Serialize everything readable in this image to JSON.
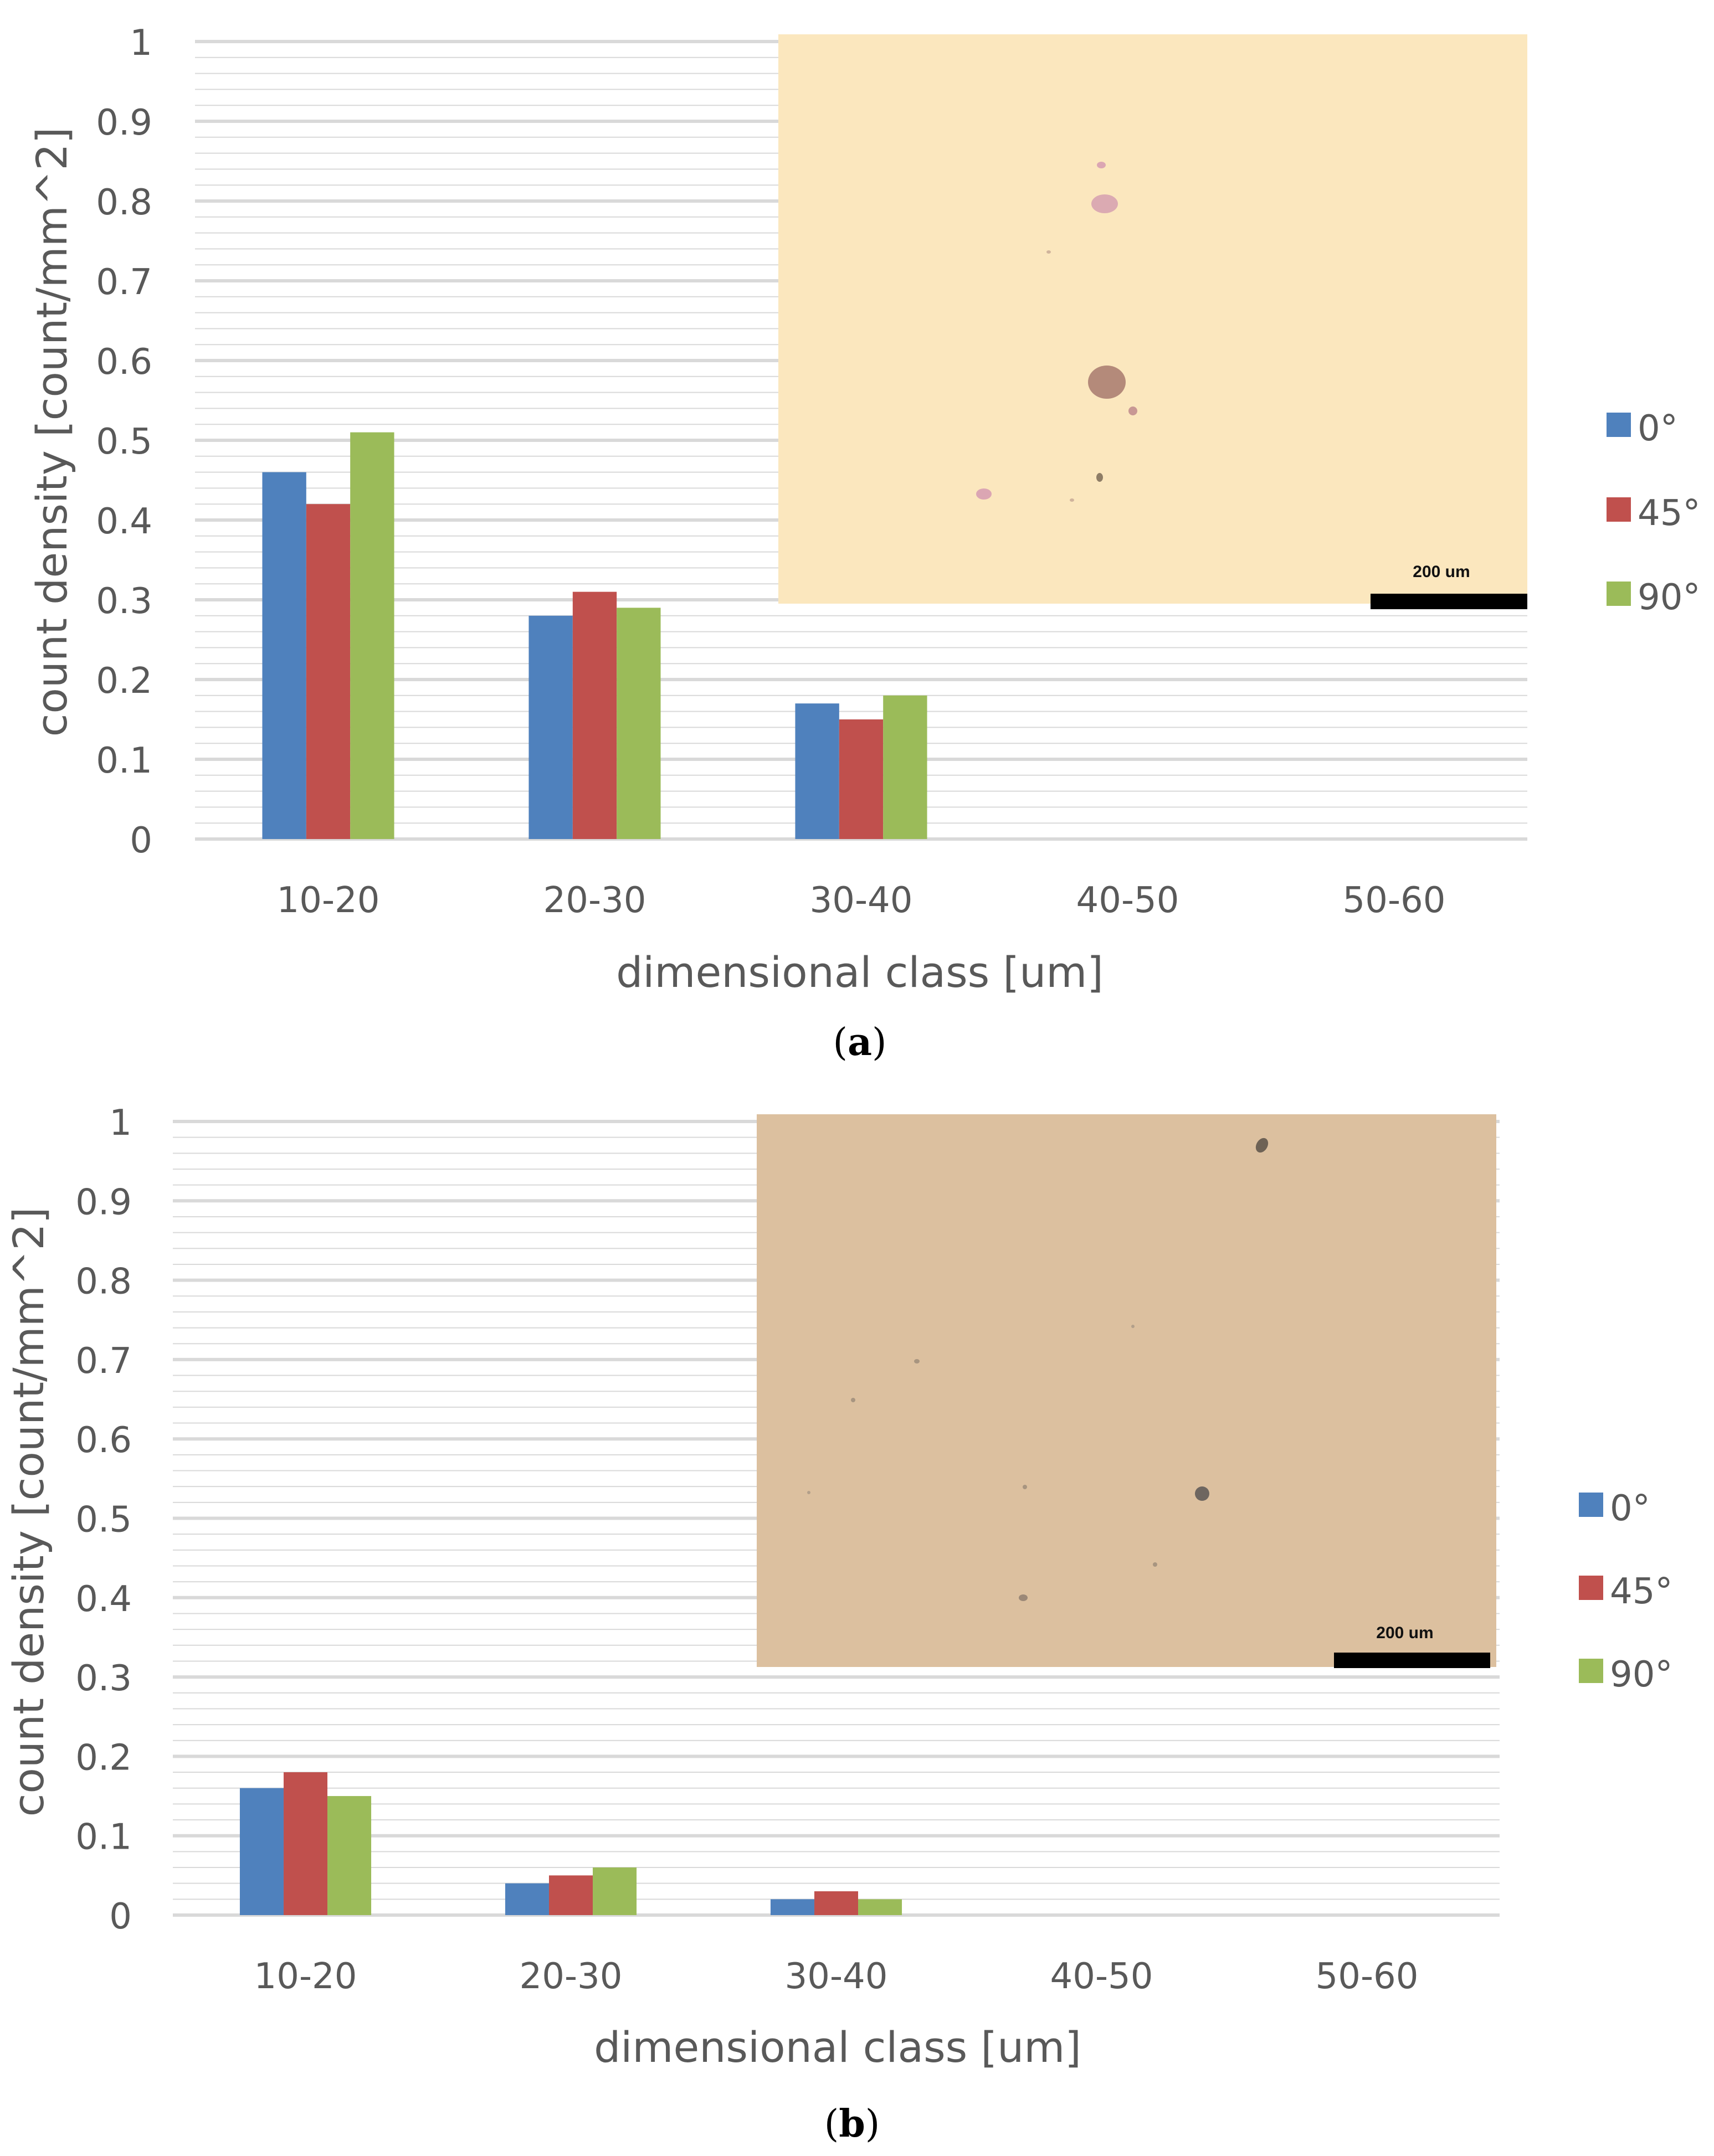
{
  "chart_data": [
    {
      "type": "bar",
      "categories": [
        "10-20",
        "20-30",
        "30-40",
        "40-50",
        "50-60"
      ],
      "series": [
        {
          "name": "0°",
          "values": [
            0.46,
            0.28,
            0.17,
            0,
            0
          ]
        },
        {
          "name": "45°",
          "values": [
            0.42,
            0.31,
            0.15,
            0,
            0
          ]
        },
        {
          "name": "90°",
          "values": [
            0.51,
            0.29,
            0.18,
            0,
            0
          ]
        }
      ],
      "yticks": [
        "0",
        "0.1",
        "0.2",
        "0.3",
        "0.4",
        "0.5",
        "0.6",
        "0.7",
        "0.8",
        "0.9",
        "1"
      ],
      "title": "",
      "xlabel": "dimensional class [um]",
      "ylabel": "count density [count/mm^2]",
      "ylim": [
        0,
        1
      ],
      "grid": true,
      "legend": "right",
      "caption_letter": "a",
      "inset": {
        "scale_label": "200 um",
        "background": "#fbe7be"
      }
    },
    {
      "type": "bar",
      "categories": [
        "10-20",
        "20-30",
        "30-40",
        "40-50",
        "50-60"
      ],
      "series": [
        {
          "name": "0°",
          "values": [
            0.16,
            0.04,
            0.02,
            0,
            0
          ]
        },
        {
          "name": "45°",
          "values": [
            0.18,
            0.05,
            0.03,
            0,
            0
          ]
        },
        {
          "name": "90°",
          "values": [
            0.15,
            0.06,
            0.02,
            0,
            0
          ]
        }
      ],
      "yticks": [
        "0",
        "0.1",
        "0.2",
        "0.3",
        "0.4",
        "0.5",
        "0.6",
        "0.7",
        "0.8",
        "0.9",
        "1"
      ],
      "title": "",
      "xlabel": "dimensional class [um]",
      "ylabel": "count density [count/mm^2]",
      "ylim": [
        0,
        1
      ],
      "grid": true,
      "legend": "right",
      "caption_letter": "b",
      "inset": {
        "scale_label": "200 um",
        "background": "#dcc09f"
      }
    }
  ],
  "colors": {
    "series": [
      "#4f81bd",
      "#c0504d",
      "#9bbb59"
    ],
    "grid": "#d9d9d9"
  },
  "caption_parens": [
    "(",
    ")"
  ]
}
